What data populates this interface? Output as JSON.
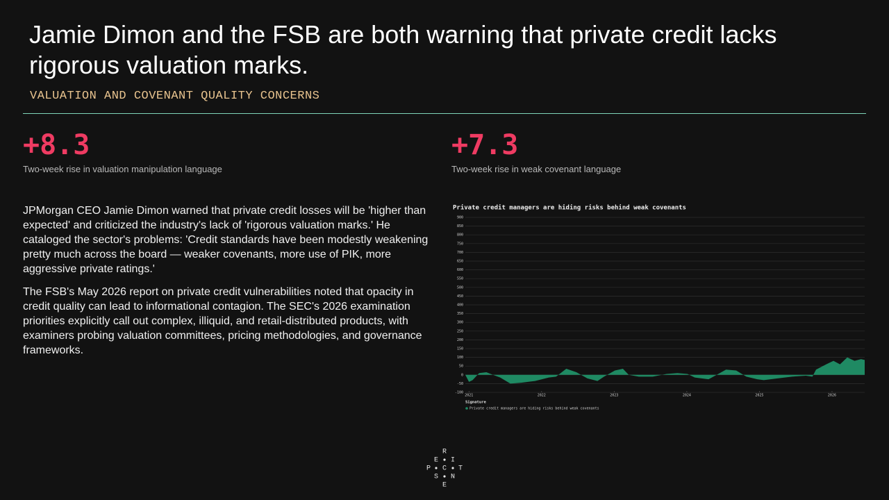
{
  "header": {
    "title": "Jamie Dimon and the FSB are both warning that private credit lacks rigorous valuation marks.",
    "subtitle": "VALUATION AND COVENANT QUALITY CONCERNS"
  },
  "stats": [
    {
      "value": "+8.3",
      "label": "Two-week rise in valuation manipulation language"
    },
    {
      "value": "+7.3",
      "label": "Two-week rise in weak covenant language"
    }
  ],
  "paragraphs": [
    "JPMorgan CEO Jamie Dimon warned that private credit losses will be 'higher than expected' and criticized the industry's lack of 'rigorous valuation marks.' He cataloged the sector's problems: 'Credit standards have been modestly weakening pretty much across the board — weaker covenants, more use of PIK, more aggressive private ratings.'",
    "The FSB's May 2026 report on private credit vulnerabilities noted that opacity in credit quality can lead to informational contagion. The SEC's 2026 examination priorities explicitly call out complex, illiquid, and retail-distributed products, with examiners probing valuation committees, pricing methodologies, and governance frameworks."
  ],
  "chart_data": {
    "type": "area",
    "title": "Private credit managers are hiding risks behind weak covenants",
    "legend_title": "Signature",
    "x": [
      2020.95,
      2021.0,
      2021.05,
      2021.14,
      2021.24,
      2021.33,
      2021.43,
      2021.57,
      2021.72,
      2021.91,
      2022.1,
      2022.2,
      2022.34,
      2022.48,
      2022.63,
      2022.77,
      2022.86,
      2023.01,
      2023.12,
      2023.2,
      2023.34,
      2023.53,
      2023.72,
      2023.87,
      2024.01,
      2024.11,
      2024.3,
      2024.39,
      2024.54,
      2024.68,
      2024.82,
      2024.97,
      2025.06,
      2025.25,
      2025.45,
      2025.64,
      2025.73,
      2025.78,
      2025.92,
      2026.02,
      2026.11,
      2026.21,
      2026.31,
      2026.4,
      2026.45
    ],
    "series": [
      {
        "name": "Private credit managers are hiding risks behind weak covenants",
        "color": "#1f8a63",
        "values": [
          0,
          -40,
          -30,
          10,
          15,
          0,
          -15,
          -50,
          -45,
          -35,
          -15,
          -10,
          35,
          15,
          -20,
          -35,
          -10,
          25,
          35,
          0,
          -10,
          -10,
          5,
          10,
          5,
          -15,
          -25,
          -5,
          30,
          25,
          -10,
          -25,
          -30,
          -20,
          -10,
          -5,
          -10,
          30,
          60,
          80,
          60,
          100,
          80,
          90,
          85
        ]
      }
    ],
    "xlim": [
      2020.95,
      2026.45
    ],
    "xticks": [
      2021,
      2022,
      2023,
      2024,
      2025,
      2026
    ],
    "ylim": [
      -100,
      900
    ],
    "yticks": [
      -100,
      -50,
      0,
      50,
      100,
      150,
      200,
      250,
      300,
      350,
      400,
      450,
      500,
      550,
      600,
      650,
      700,
      750,
      800,
      850,
      900
    ],
    "grid": true
  },
  "logo": [
    "R",
    "E",
    "I",
    "P",
    "C",
    "T",
    "S",
    "N",
    "E"
  ]
}
